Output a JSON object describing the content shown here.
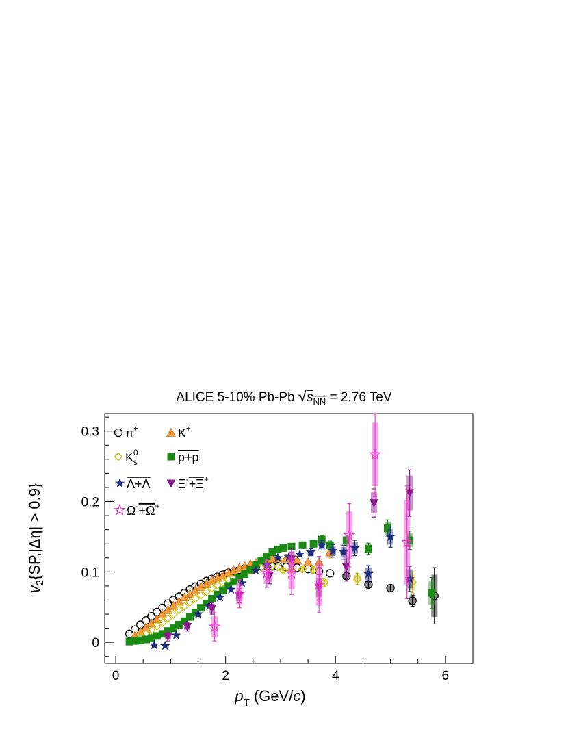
{
  "chart_data": {
    "type": "scatter",
    "title_main": "ALICE 5-10% Pb-Pb ",
    "title_sqrt": "s",
    "title_sqrt_sub": "NN",
    "title_energy": " = 2.76 TeV",
    "xlabel_var": "p",
    "xlabel_sub": "T",
    "xlabel_unit_open": " (GeV/",
    "xlabel_unit_c": "c",
    "xlabel_unit_close": ")",
    "ylabel_var": "v",
    "ylabel_sub": "2",
    "ylabel_rest": "{SP,|Δη| > 0.9}",
    "xlim": [
      -0.2,
      6.5
    ],
    "ylim": [
      -0.03,
      0.325
    ],
    "xticks": [
      0,
      2,
      4,
      6
    ],
    "yticks": [
      0,
      0.1,
      0.2,
      0.3
    ],
    "ytick_labels": [
      "0",
      "0.1",
      "0.2",
      "0.3"
    ],
    "grid": false,
    "legend_position": "top-left",
    "series": [
      {
        "name": "π±",
        "legend_text": "π",
        "legend_sup": "±",
        "color": "#000000",
        "marker": "circle-open",
        "x": [
          0.25,
          0.35,
          0.45,
          0.55,
          0.65,
          0.75,
          0.85,
          0.95,
          1.05,
          1.15,
          1.25,
          1.35,
          1.45,
          1.55,
          1.65,
          1.75,
          1.85,
          1.95,
          2.05,
          2.15,
          2.25,
          2.35,
          2.45,
          2.55,
          2.65,
          2.75,
          2.85,
          2.95,
          3.1,
          3.3,
          3.5,
          3.7,
          3.9,
          4.2,
          4.6,
          5.0,
          5.4,
          5.8
        ],
        "y": [
          0.012,
          0.018,
          0.025,
          0.031,
          0.037,
          0.043,
          0.049,
          0.055,
          0.06,
          0.065,
          0.07,
          0.075,
          0.079,
          0.083,
          0.087,
          0.09,
          0.093,
          0.096,
          0.099,
          0.101,
          0.103,
          0.105,
          0.106,
          0.107,
          0.108,
          0.108,
          0.108,
          0.108,
          0.107,
          0.106,
          0.104,
          0.101,
          0.098,
          0.094,
          0.082,
          0.077,
          0.059,
          0.066
        ],
        "err": [
          0,
          0,
          0,
          0,
          0,
          0,
          0,
          0,
          0,
          0,
          0,
          0,
          0,
          0,
          0,
          0,
          0,
          0,
          0,
          0,
          0,
          0,
          0,
          0,
          0,
          0,
          0,
          0,
          0,
          0,
          0,
          0,
          0,
          0.003,
          0.004,
          0.005,
          0.008,
          0.04
        ]
      },
      {
        "name": "K±",
        "legend_text": "K",
        "legend_sup": "±",
        "color": "#f39b3c",
        "marker": "triangle",
        "x": [
          0.35,
          0.45,
          0.55,
          0.65,
          0.75,
          0.85,
          0.95,
          1.05,
          1.15,
          1.25,
          1.35,
          1.45,
          1.55,
          1.65,
          1.75,
          1.85,
          1.95,
          2.05,
          2.15,
          2.25,
          2.35,
          2.45,
          2.55,
          2.65,
          2.75,
          2.85,
          2.95,
          3.1,
          3.3,
          3.5,
          3.7,
          3.9
        ],
        "y": [
          0.01,
          0.015,
          0.021,
          0.027,
          0.033,
          0.04,
          0.046,
          0.052,
          0.058,
          0.064,
          0.069,
          0.074,
          0.079,
          0.083,
          0.088,
          0.092,
          0.095,
          0.099,
          0.102,
          0.106,
          0.108,
          0.111,
          0.113,
          0.116,
          0.118,
          0.119,
          0.12,
          0.119,
          0.117,
          0.114,
          0.114,
          0.128
        ],
        "err": [
          0,
          0,
          0,
          0,
          0,
          0,
          0,
          0,
          0,
          0,
          0,
          0,
          0,
          0,
          0,
          0,
          0,
          0,
          0,
          0,
          0,
          0,
          0,
          0,
          0,
          0,
          0,
          0,
          0,
          0,
          0,
          0.008
        ]
      },
      {
        "name": "K0s",
        "legend_text": "K",
        "legend_sup": "0",
        "legend_sub": "s",
        "color": "#c9c217",
        "marker": "diamond-open",
        "x": [
          0.45,
          0.55,
          0.65,
          0.75,
          0.85,
          0.95,
          1.05,
          1.15,
          1.25,
          1.35,
          1.45,
          1.55,
          1.65,
          1.75,
          1.85,
          1.95,
          2.05,
          2.15,
          2.25,
          2.35,
          2.45,
          2.55,
          2.65,
          2.75,
          2.85,
          2.95,
          3.05,
          3.2,
          3.4,
          3.6,
          3.8,
          4.4,
          5.4
        ],
        "y": [
          0.008,
          0.012,
          0.017,
          0.023,
          0.028,
          0.034,
          0.04,
          0.046,
          0.051,
          0.057,
          0.062,
          0.067,
          0.072,
          0.077,
          0.081,
          0.085,
          0.089,
          0.092,
          0.096,
          0.099,
          0.102,
          0.104,
          0.106,
          0.108,
          0.108,
          0.107,
          0.102,
          0.103,
          0.104,
          0.103,
          0.085,
          0.09,
          0.085
        ],
        "err": [
          0,
          0,
          0,
          0,
          0,
          0,
          0,
          0,
          0,
          0,
          0,
          0,
          0,
          0,
          0,
          0,
          0,
          0,
          0,
          0,
          0,
          0,
          0,
          0,
          0,
          0,
          0.003,
          0.003,
          0.004,
          0.005,
          0.006,
          0.008,
          0.015
        ]
      },
      {
        "name": "p+p̄",
        "legend_text": "p+p",
        "legend_bar": true,
        "color": "#1a8a14",
        "marker": "square",
        "x": [
          0.25,
          0.35,
          0.45,
          0.55,
          0.65,
          0.75,
          0.85,
          0.95,
          1.05,
          1.15,
          1.25,
          1.35,
          1.45,
          1.55,
          1.65,
          1.75,
          1.85,
          1.95,
          2.05,
          2.15,
          2.25,
          2.35,
          2.45,
          2.55,
          2.65,
          2.75,
          2.85,
          2.95,
          3.05,
          3.2,
          3.4,
          3.6,
          3.75,
          3.9,
          4.2,
          4.6,
          4.95,
          5.35,
          5.75
        ],
        "y": [
          0.001,
          0.002,
          0.003,
          0.004,
          0.006,
          0.009,
          0.012,
          0.016,
          0.02,
          0.025,
          0.03,
          0.036,
          0.042,
          0.049,
          0.055,
          0.062,
          0.068,
          0.074,
          0.08,
          0.086,
          0.092,
          0.097,
          0.103,
          0.11,
          0.116,
          0.122,
          0.128,
          0.132,
          0.134,
          0.136,
          0.138,
          0.14,
          0.146,
          0.138,
          0.145,
          0.133,
          0.162,
          0.145,
          0.07
        ],
        "err": [
          0,
          0,
          0,
          0,
          0,
          0,
          0,
          0,
          0,
          0,
          0,
          0,
          0,
          0,
          0,
          0,
          0,
          0,
          0,
          0,
          0,
          0,
          0,
          0,
          0,
          0,
          0,
          0,
          0,
          0.003,
          0.004,
          0.005,
          0.006,
          0.006,
          0.007,
          0.008,
          0.012,
          0.013,
          0.022
        ]
      },
      {
        "name": "Λ+Λ̄",
        "legend_text": "Λ+Λ",
        "legend_bar": true,
        "color": "#1e2d7a",
        "marker": "star",
        "x": [
          0.7,
          0.9,
          1.1,
          1.3,
          1.5,
          1.7,
          1.9,
          2.1,
          2.3,
          2.55,
          2.75,
          2.95,
          3.15,
          3.35,
          3.55,
          3.75,
          3.95,
          4.15,
          4.35,
          4.6,
          5.0,
          5.35
        ],
        "y": [
          -0.004,
          -0.005,
          0.01,
          0.025,
          0.04,
          0.052,
          0.064,
          0.075,
          0.084,
          0.102,
          0.11,
          0.12,
          0.121,
          0.125,
          0.128,
          0.138,
          0.13,
          0.128,
          0.134,
          0.097,
          0.15,
          0.09
        ],
        "err": [
          0,
          0,
          0,
          0,
          0,
          0,
          0,
          0,
          0,
          0,
          0,
          0,
          0,
          0,
          0.005,
          0.007,
          0.009,
          0.01,
          0.011,
          0.012,
          0.015,
          0.018
        ]
      },
      {
        "name": "Ξ-+Ξ̄+",
        "legend_text": "Ξ",
        "legend_sup": "-",
        "legend_text2": "+Ξ",
        "legend_sup2": "+",
        "legend_bar2": true,
        "color": "#8b1a8b",
        "marker": "triangle-down",
        "x": [
          0.95,
          1.3,
          1.75,
          2.25,
          2.8,
          3.2,
          3.7,
          4.2,
          4.7,
          5.35
        ],
        "y": [
          0.008,
          0.022,
          0.048,
          0.066,
          0.095,
          0.118,
          0.078,
          0.107,
          0.198,
          0.212
        ],
        "err": [
          0.006,
          0.006,
          0.008,
          0.01,
          0.012,
          0.015,
          0.018,
          0.02,
          0.02,
          0.033
        ]
      },
      {
        "name": "Ω-+Ω̄+",
        "legend_text": "Ω",
        "legend_sup": "-",
        "legend_text2": "+Ω",
        "legend_sup2": "+",
        "legend_bar2": true,
        "color": "#f23bd3",
        "marker": "star-open",
        "x": [
          1.8,
          2.25,
          2.75,
          3.2,
          3.7,
          4.25,
          4.72,
          5.3
        ],
        "y": [
          0.022,
          0.069,
          0.098,
          0.098,
          0.082,
          0.152,
          0.267,
          0.142
        ],
        "err": [
          0.02,
          0.02,
          0.02,
          0.03,
          0.04,
          0.045,
          0.06,
          0.08
        ]
      }
    ]
  }
}
